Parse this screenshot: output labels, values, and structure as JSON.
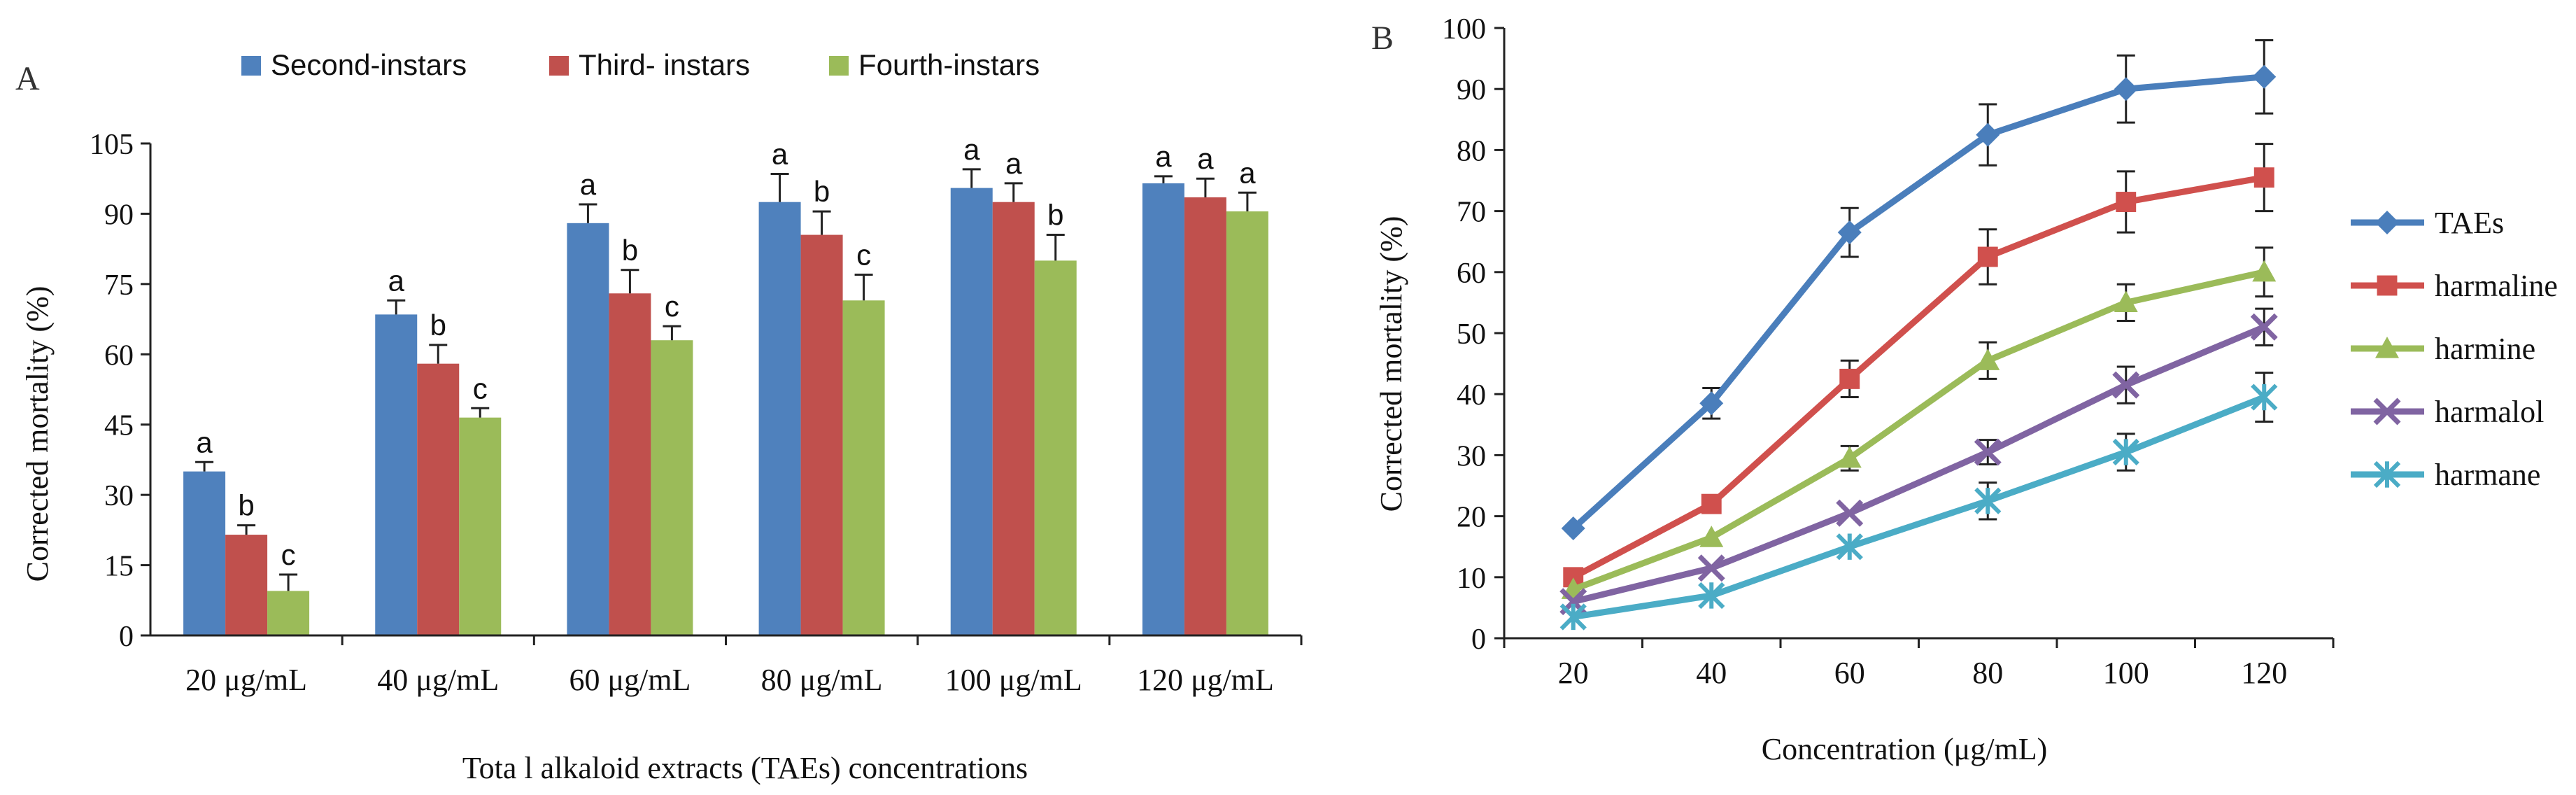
{
  "chart_data": [
    {
      "panel_label": "A",
      "type": "bar",
      "title": "",
      "xlabel": "Tota l alkaloid extracts (TAEs) concentrations",
      "ylabel": "Corrected mortality (%)",
      "ylim": [
        0,
        105
      ],
      "yticks": [
        "0",
        "15",
        "30",
        "45",
        "60",
        "75",
        "90",
        "105"
      ],
      "categories": [
        "20 μg/mL",
        "40 μg/mL",
        "60 μg/mL",
        "80 μg/mL",
        "100 μg/mL",
        "120 μg/mL"
      ],
      "legend_position": "top",
      "series": [
        {
          "name": "Second-instars",
          "color": "#4f81bd",
          "values": [
            35,
            68.5,
            88,
            92.5,
            95.5,
            96.5
          ],
          "errors": [
            2,
            3,
            4,
            6,
            4,
            1.5
          ],
          "letters": [
            "a",
            "a",
            "a",
            "a",
            "a",
            "a"
          ]
        },
        {
          "name": "Third- instars",
          "color": "#c0504d",
          "values": [
            21.5,
            58,
            73,
            85.5,
            92.5,
            93.5
          ],
          "errors": [
            2,
            4,
            5,
            5,
            4,
            4
          ],
          "letters": [
            "b",
            "b",
            "b",
            "b",
            "a",
            "a"
          ]
        },
        {
          "name": "Fourth-instars",
          "color": "#9bbb59",
          "values": [
            9.5,
            46.5,
            63,
            71.5,
            80,
            90.5
          ],
          "errors": [
            3.5,
            2,
            3,
            5.5,
            5.5,
            4
          ],
          "letters": [
            "c",
            "c",
            "c",
            "c",
            "b",
            "a"
          ]
        }
      ]
    },
    {
      "panel_label": "B",
      "type": "line",
      "title": "",
      "xlabel": "Concentration (μg/mL)",
      "ylabel": "Corrected mortality (%)",
      "ylim": [
        0,
        100
      ],
      "yticks": [
        "0",
        "10",
        "20",
        "30",
        "40",
        "50",
        "60",
        "70",
        "80",
        "90",
        "100"
      ],
      "x": [
        20,
        40,
        60,
        80,
        100,
        120
      ],
      "xtick_labels": [
        "20",
        "40",
        "60",
        "80",
        "100",
        "120"
      ],
      "legend_position": "right",
      "series": [
        {
          "name": "TAEs",
          "color": "#4a7ebb",
          "marker": "diamond",
          "values": [
            18,
            38.5,
            66.5,
            82.5,
            90,
            92
          ],
          "errors": [
            0,
            2.5,
            4,
            5,
            5.5,
            6
          ]
        },
        {
          "name": "harmaline",
          "color": "#d0504d",
          "marker": "square",
          "values": [
            10,
            22,
            42.5,
            62.5,
            71.5,
            75.5
          ],
          "errors": [
            0,
            0,
            3,
            4.5,
            5,
            5.5
          ]
        },
        {
          "name": "harmine",
          "color": "#9bbb59",
          "marker": "triangle",
          "values": [
            8,
            16.5,
            29.5,
            45.5,
            55,
            60
          ],
          "errors": [
            0,
            0,
            2,
            3,
            3,
            4
          ]
        },
        {
          "name": "harmalol",
          "color": "#8064a2",
          "marker": "x",
          "values": [
            6,
            11.5,
            20.5,
            30.5,
            41.5,
            51
          ],
          "errors": [
            0,
            0,
            0,
            2,
            3,
            3
          ]
        },
        {
          "name": "harmane",
          "color": "#4bacc6",
          "marker": "star",
          "values": [
            3.5,
            7,
            15,
            22.5,
            30.5,
            39.5
          ],
          "errors": [
            0,
            0,
            0,
            3,
            3,
            4
          ]
        }
      ]
    }
  ]
}
